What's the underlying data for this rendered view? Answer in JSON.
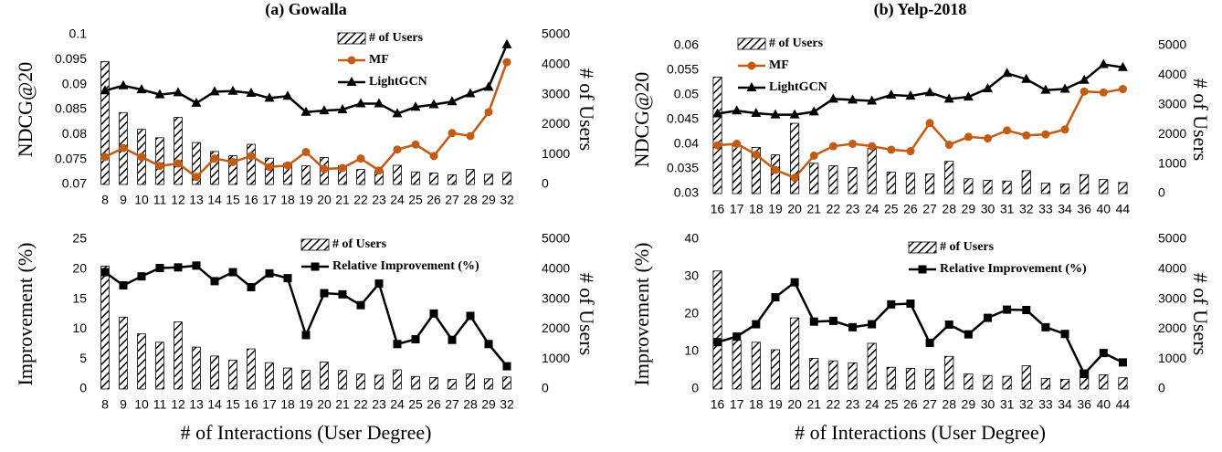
{
  "chart_data": [
    {
      "type": "combo",
      "title": "(a) Gowalla",
      "ylabel": "NDCG@20",
      "y2label": "# of Users",
      "categories": [
        "8",
        "9",
        "10",
        "11",
        "12",
        "13",
        "14",
        "15",
        "16",
        "17",
        "18",
        "19",
        "20",
        "21",
        "22",
        "23",
        "24",
        "25",
        "26",
        "27",
        "28",
        "29",
        "32"
      ],
      "ylim": [
        0.07,
        0.1
      ],
      "yticks": [
        0.07,
        0.075,
        0.08,
        0.085,
        0.09,
        0.095,
        0.1
      ],
      "y2lim": [
        0,
        5000
      ],
      "y2ticks": [
        0,
        1000,
        2000,
        3000,
        4000,
        5000
      ],
      "series": [
        {
          "name": "# of Users",
          "type": "bar",
          "axis": "y2",
          "color": "#000000",
          "values": [
            4100,
            2400,
            1840,
            1560,
            2240,
            1400,
            1100,
            960,
            1340,
            880,
            700,
            620,
            900,
            620,
            500,
            460,
            640,
            420,
            380,
            320,
            500,
            340,
            400
          ]
        },
        {
          "name": "MF",
          "type": "line",
          "marker": "circle",
          "color": "#c55a11",
          "values": [
            0.0755,
            0.0773,
            0.0755,
            0.0737,
            0.0742,
            0.0715,
            0.0752,
            0.0745,
            0.0757,
            0.0735,
            0.0738,
            0.0765,
            0.0731,
            0.0733,
            0.0752,
            0.0728,
            0.077,
            0.078,
            0.0757,
            0.0803,
            0.0797,
            0.0845,
            0.0945
          ]
        },
        {
          "name": "LightGCN",
          "type": "line",
          "marker": "triangle",
          "color": "#000000",
          "values": [
            0.0888,
            0.0898,
            0.089,
            0.088,
            0.0884,
            0.0863,
            0.0886,
            0.0887,
            0.0883,
            0.0873,
            0.0877,
            0.0845,
            0.0848,
            0.085,
            0.0862,
            0.0862,
            0.0842,
            0.0855,
            0.086,
            0.0866,
            0.0882,
            0.0895,
            0.098
          ]
        }
      ]
    },
    {
      "type": "combo",
      "title": "(b) Yelp-2018",
      "ylabel": "NDCG@20",
      "y2label": "# of Users",
      "categories": [
        "16",
        "17",
        "18",
        "19",
        "20",
        "21",
        "22",
        "23",
        "24",
        "25",
        "26",
        "27",
        "28",
        "29",
        "30",
        "31",
        "32",
        "33",
        "34",
        "36",
        "40",
        "44"
      ],
      "ylim": [
        0.03,
        0.06
      ],
      "yticks": [
        0.03,
        0.035,
        0.04,
        0.045,
        0.05,
        0.055,
        0.06
      ],
      "y2lim": [
        0,
        5000
      ],
      "y2ticks": [
        0,
        1000,
        2000,
        3000,
        4000,
        5000
      ],
      "series": [
        {
          "name": "# of Users",
          "type": "bar",
          "axis": "y2",
          "color": "#000000",
          "values": [
            3940,
            1625,
            1560,
            1310,
            2375,
            1025,
            940,
            875,
            1525,
            725,
            690,
            660,
            1090,
            500,
            450,
            425,
            775,
            350,
            325,
            640,
            475,
            375
          ]
        },
        {
          "name": "MF",
          "type": "line",
          "marker": "circle",
          "color": "#c55a11",
          "values": [
            0.0398,
            0.0401,
            0.0379,
            0.0348,
            0.0332,
            0.0377,
            0.0396,
            0.0401,
            0.0396,
            0.0389,
            0.0386,
            0.0443,
            0.0399,
            0.0415,
            0.0412,
            0.0428,
            0.0418,
            0.042,
            0.043,
            0.0507,
            0.0505,
            0.0512
          ]
        },
        {
          "name": "LightGCN",
          "type": "line",
          "marker": "triangle",
          "color": "#000000",
          "values": [
            0.0462,
            0.0468,
            0.0463,
            0.046,
            0.046,
            0.0466,
            0.0492,
            0.049,
            0.0488,
            0.05,
            0.0498,
            0.0505,
            0.0492,
            0.0496,
            0.0513,
            0.0544,
            0.0532,
            0.051,
            0.0512,
            0.053,
            0.0562,
            0.0556
          ]
        }
      ]
    },
    {
      "type": "combo",
      "ylabel": "Improvement (%)",
      "y2label": "# of Users",
      "xlabel": "# of Interactions (User Degree)",
      "categories": [
        "8",
        "9",
        "10",
        "11",
        "12",
        "13",
        "14",
        "15",
        "16",
        "17",
        "18",
        "19",
        "20",
        "21",
        "22",
        "23",
        "24",
        "25",
        "26",
        "27",
        "28",
        "29",
        "32"
      ],
      "ylim": [
        0,
        25
      ],
      "yticks": [
        0,
        5,
        10,
        15,
        20,
        25
      ],
      "y2lim": [
        0,
        5000
      ],
      "y2ticks": [
        0,
        1000,
        2000,
        3000,
        4000,
        5000
      ],
      "series": [
        {
          "name": "# of Users",
          "type": "bar",
          "axis": "y2",
          "color": "#000000",
          "values": [
            4100,
            2400,
            1840,
            1560,
            2240,
            1400,
            1100,
            960,
            1340,
            880,
            700,
            620,
            900,
            620,
            500,
            460,
            640,
            420,
            380,
            320,
            500,
            340,
            400
          ]
        },
        {
          "name": "Relative Improvement (%)",
          "type": "line",
          "marker": "square",
          "color": "#000000",
          "values": [
            19.5,
            17.3,
            18.8,
            20.2,
            20.3,
            20.6,
            18,
            19.5,
            17,
            19.3,
            18.5,
            9,
            16,
            15.8,
            14,
            17.6,
            7.5,
            8.3,
            12.6,
            8.2,
            12.2,
            7.5,
            3.8
          ]
        }
      ]
    },
    {
      "type": "combo",
      "ylabel": "Improvement (%)",
      "y2label": "# of Users",
      "xlabel": "# of Interactions (User Degree)",
      "categories": [
        "16",
        "17",
        "18",
        "19",
        "20",
        "21",
        "22",
        "23",
        "24",
        "25",
        "26",
        "27",
        "28",
        "29",
        "30",
        "31",
        "32",
        "33",
        "34",
        "36",
        "40",
        "44"
      ],
      "ylim": [
        0,
        40
      ],
      "yticks": [
        0,
        10,
        20,
        30,
        40
      ],
      "y2lim": [
        0,
        5000
      ],
      "y2ticks": [
        0,
        1000,
        2000,
        3000,
        4000,
        5000
      ],
      "series": [
        {
          "name": "# of Users",
          "type": "bar",
          "axis": "y2",
          "color": "#000000",
          "values": [
            3940,
            1625,
            1560,
            1310,
            2375,
            1025,
            940,
            875,
            1525,
            725,
            690,
            660,
            1090,
            500,
            450,
            425,
            775,
            350,
            325,
            640,
            475,
            375
          ]
        },
        {
          "name": "Relative Improvement (%)",
          "type": "line",
          "marker": "square",
          "color": "#000000",
          "values": [
            12.5,
            14,
            17.3,
            24.5,
            28.5,
            18,
            18.2,
            16.5,
            17.3,
            22.6,
            22.8,
            12.3,
            17.2,
            14.6,
            19,
            21.2,
            21.1,
            16.5,
            14.7,
            4,
            9.6,
            7.1
          ]
        }
      ]
    }
  ]
}
